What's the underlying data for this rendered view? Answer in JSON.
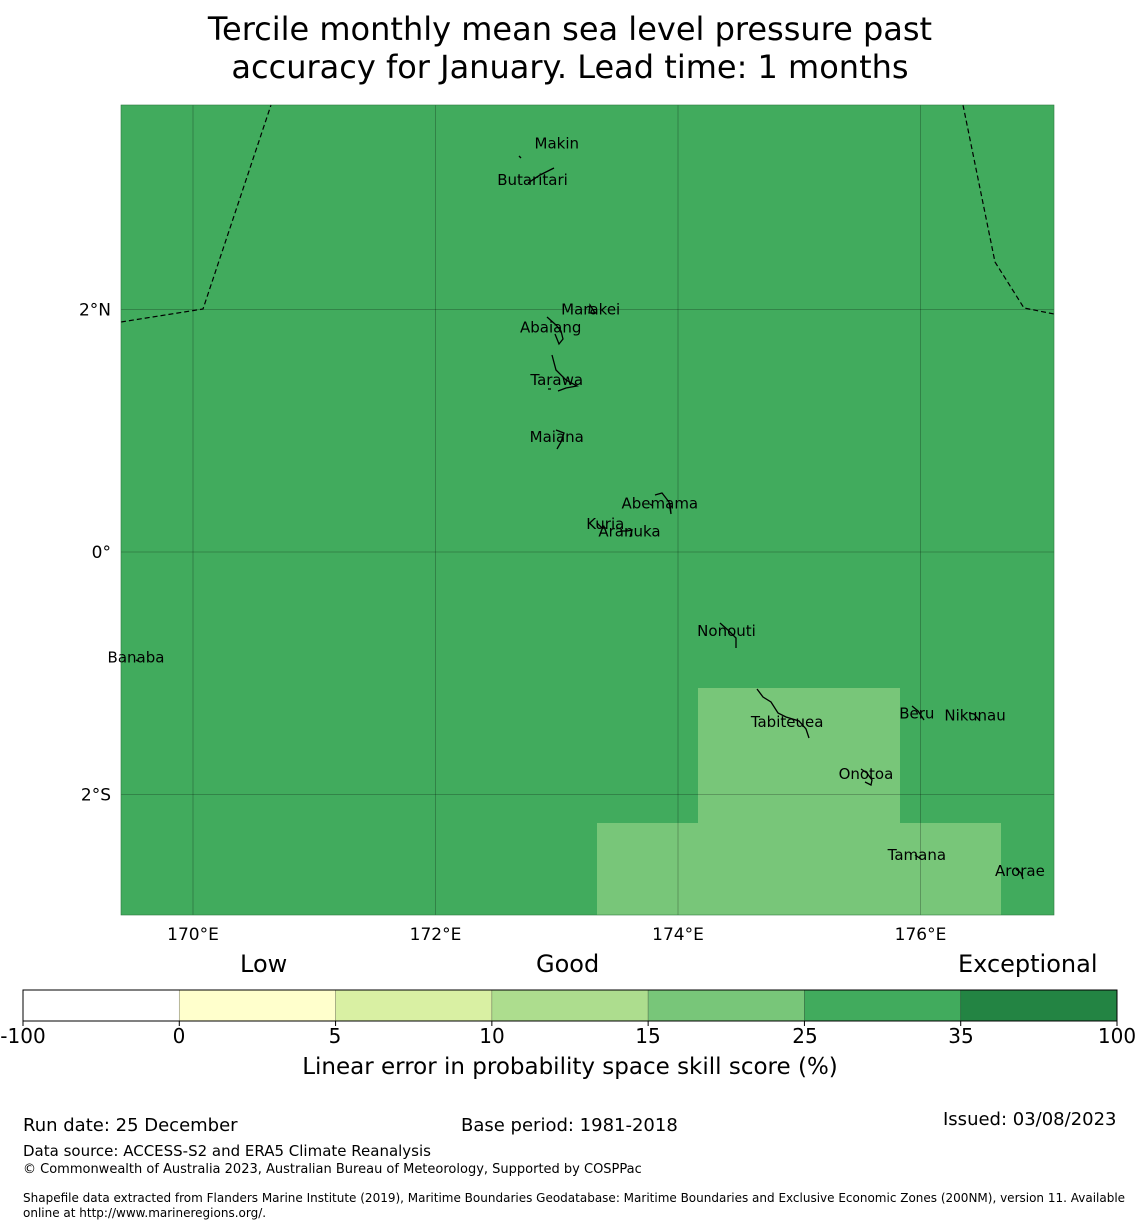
{
  "title": {
    "line1": "Tercile monthly mean sea level pressure past",
    "line2": "accuracy for January. Lead time: 1 months"
  },
  "map": {
    "background_color": "#41ab5d",
    "highlight_color": "#78c679",
    "lon_ticks": [
      {
        "lon": 170,
        "label": "170°E"
      },
      {
        "lon": 172,
        "label": "172°E"
      },
      {
        "lon": 174,
        "label": "174°E"
      },
      {
        "lon": 176,
        "label": "176°E"
      }
    ],
    "lat_ticks": [
      {
        "lat": 2,
        "label": "2°N"
      },
      {
        "lat": 0,
        "label": "0°"
      },
      {
        "lat": -2,
        "label": "2°S"
      }
    ],
    "islands": [
      {
        "name": "Makin",
        "lon": 173.0,
        "lat": 3.37
      },
      {
        "name": "Butaritari",
        "lon": 172.8,
        "lat": 3.07
      },
      {
        "name": "Marakei",
        "lon": 173.28,
        "lat": 2.0
      },
      {
        "name": "Abaiang",
        "lon": 172.95,
        "lat": 1.85
      },
      {
        "name": "Tarawa",
        "lon": 173.0,
        "lat": 1.42
      },
      {
        "name": "Maiana",
        "lon": 173.0,
        "lat": 0.95
      },
      {
        "name": "Abemama",
        "lon": 173.85,
        "lat": 0.4
      },
      {
        "name": "Kuria",
        "lon": 173.4,
        "lat": 0.23
      },
      {
        "name": "Aranuka",
        "lon": 173.6,
        "lat": 0.17
      },
      {
        "name": "Nonouti",
        "lon": 174.4,
        "lat": -0.65
      },
      {
        "name": "Banaba",
        "lon": 169.53,
        "lat": -0.87
      },
      {
        "name": "Tabiteuea",
        "lon": 174.9,
        "lat": -1.4
      },
      {
        "name": "Beru",
        "lon": 175.97,
        "lat": -1.33
      },
      {
        "name": "Nikunau",
        "lon": 176.45,
        "lat": -1.35
      },
      {
        "name": "Onotoa",
        "lon": 175.55,
        "lat": -1.83
      },
      {
        "name": "Tamana",
        "lon": 175.97,
        "lat": -2.5
      },
      {
        "name": "Arorae",
        "lon": 176.82,
        "lat": -2.63
      }
    ]
  },
  "colorbar": {
    "category_low": "Low",
    "category_good": "Good",
    "category_exceptional": "Exceptional",
    "segments": [
      {
        "from": -100,
        "to": 0,
        "color": "#ffffff"
      },
      {
        "from": 0,
        "to": 5,
        "color": "#ffffcc"
      },
      {
        "from": 5,
        "to": 10,
        "color": "#d9f0a3"
      },
      {
        "from": 10,
        "to": 15,
        "color": "#addd8e"
      },
      {
        "from": 15,
        "to": 25,
        "color": "#78c679"
      },
      {
        "from": 25,
        "to": 35,
        "color": "#41ab5d"
      },
      {
        "from": 35,
        "to": 100,
        "color": "#238443"
      }
    ],
    "tick_labels": [
      "-100",
      "0",
      "5",
      "10",
      "15",
      "25",
      "35",
      "100"
    ],
    "title": "Linear error in probability space skill score (%)"
  },
  "footer": {
    "run_date": "Run date: 25 December",
    "base_period": "Base period: 1981-2018",
    "issued": "Issued: 03/08/2023",
    "data_source": "Data source: ACCESS-S2 and ERA5 Climate Reanalysis",
    "copyright": "© Commonwealth of Australia 2023, Australian Bureau of Meteorology, Supported by COSPPac",
    "shapefile_line1": "Shapefile data extracted from Flanders Marine Institute (2019), Maritime Boundaries Geodatabase: Maritime Boundaries and Exclusive Economic Zones (200NM), version 11. Available",
    "shapefile_line2": "online at http://www.marineregions.org/."
  }
}
